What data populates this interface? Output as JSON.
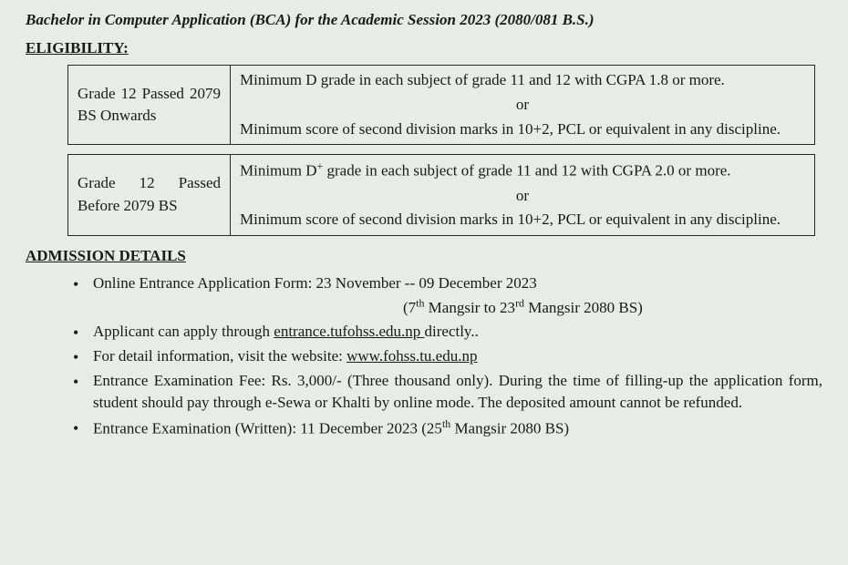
{
  "title": "Bachelor in Computer Application (BCA) for the Academic Session 2023 (2080/081 B.S.)",
  "eligibility": {
    "heading": "ELIGIBILITY:",
    "rows": [
      {
        "left": "Grade 12 Passed 2079 BS Onwards",
        "p1": "Minimum D grade in each subject of grade 11 and 12 with CGPA 1.8 or more.",
        "or": "or",
        "p2": "Minimum score of second division marks in 10+2, PCL or equivalent in any discipline."
      },
      {
        "left": "Grade 12 Passed Before 2079 BS",
        "p1_pre": "Minimum D",
        "p1_sup": "+",
        "p1_post": " grade in each subject of grade 11 and 12 with CGPA 2.0 or more.",
        "or": "or",
        "p2": "Minimum score of second division marks in 10+2, PCL or equivalent in any discipline."
      }
    ]
  },
  "admission": {
    "heading": "ADMISSION DETAILS",
    "items": {
      "i1_a": "Online Entrance Application Form: 23 November -- 09 December 2023",
      "i1_b_pre": "(7",
      "i1_b_sup1": "th",
      "i1_b_mid": " Mangsir to 23",
      "i1_b_sup2": "rd",
      "i1_b_post": " Mangsir 2080 BS)",
      "i2_a": "Applicant can apply through ",
      "i2_link": " entrance.tufohss.edu.np ",
      "i2_b": " directly..",
      "i3_a": "For detail information, visit the website: ",
      "i3_link": "www.fohss.tu.edu.np",
      "i4": "Entrance Examination Fee: Rs. 3,000/- (Three thousand only). During the time of filling-up the application form, student should pay through e-Sewa or Khalti by online mode. The deposited amount cannot be refunded.",
      "i5_a": "Entrance Examination (Written): 11 December 2023 (25",
      "i5_sup": "th",
      "i5_b": " Mangsir 2080 BS)"
    }
  }
}
